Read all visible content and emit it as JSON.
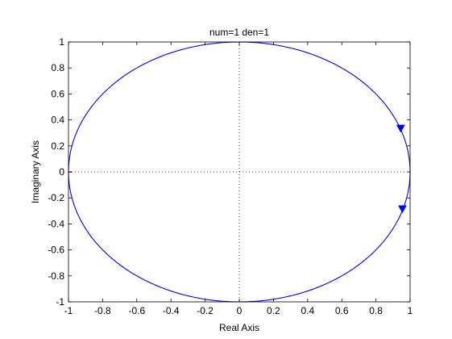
{
  "chart_data": {
    "type": "line",
    "title": "num=1 den=1",
    "xlabel": "Real Axis",
    "ylabel": "Imaginary Axis",
    "xlim": [
      -1,
      1
    ],
    "ylim": [
      -1,
      1
    ],
    "xticks": [
      "-1",
      "-0.8",
      "-0.6",
      "-0.4",
      "-0.2",
      "0",
      "0.2",
      "0.4",
      "0.6",
      "0.8",
      "1"
    ],
    "yticks": [
      "-1",
      "-0.8",
      "-0.6",
      "-0.4",
      "-0.2",
      "0",
      "0.2",
      "0.4",
      "0.6",
      "0.8",
      "1"
    ],
    "grid": false,
    "zero_lines": true,
    "series": [
      {
        "kind": "parametric-circle",
        "center": [
          0,
          0
        ],
        "radius": 1,
        "color": "#0000ff"
      }
    ],
    "arrows": [
      {
        "x": 0.945,
        "y": 0.33,
        "direction": "down"
      },
      {
        "x": 0.955,
        "y": -0.29,
        "direction": "down"
      }
    ],
    "markers": [
      {
        "x": -1,
        "y": 0,
        "color": "#ff0000"
      }
    ]
  }
}
